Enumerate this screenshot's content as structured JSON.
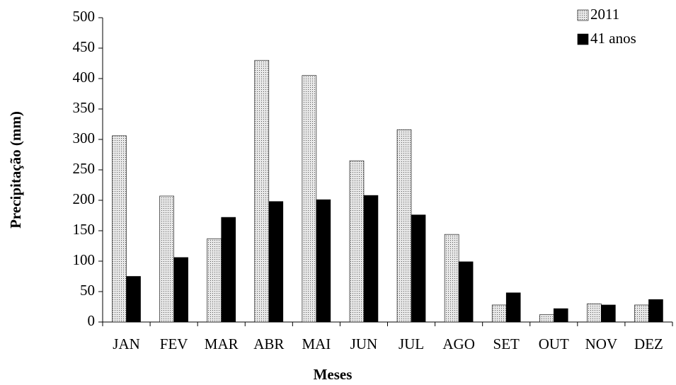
{
  "chart_data": {
    "type": "bar",
    "x_label": "Meses",
    "y_label": "Precipitação (mm)",
    "categories": [
      "JAN",
      "FEV",
      "MAR",
      "ABR",
      "MAI",
      "JUN",
      "JUL",
      "AGO",
      "SET",
      "OUT",
      "NOV",
      "DEZ"
    ],
    "series": [
      {
        "name": "2011",
        "color": "#d0d0d0",
        "values": [
          306,
          207,
          137,
          430,
          405,
          265,
          316,
          144,
          28,
          12,
          30,
          28
        ]
      },
      {
        "name": "41 anos",
        "color": "#000000",
        "values": [
          75,
          106,
          172,
          198,
          201,
          208,
          176,
          99,
          48,
          22,
          28,
          37
        ]
      }
    ],
    "ylim": [
      0,
      500
    ],
    "yticks": [
      0,
      50,
      100,
      150,
      200,
      250,
      300,
      350,
      400,
      450,
      500
    ],
    "grid": false,
    "legend": "top-right"
  }
}
